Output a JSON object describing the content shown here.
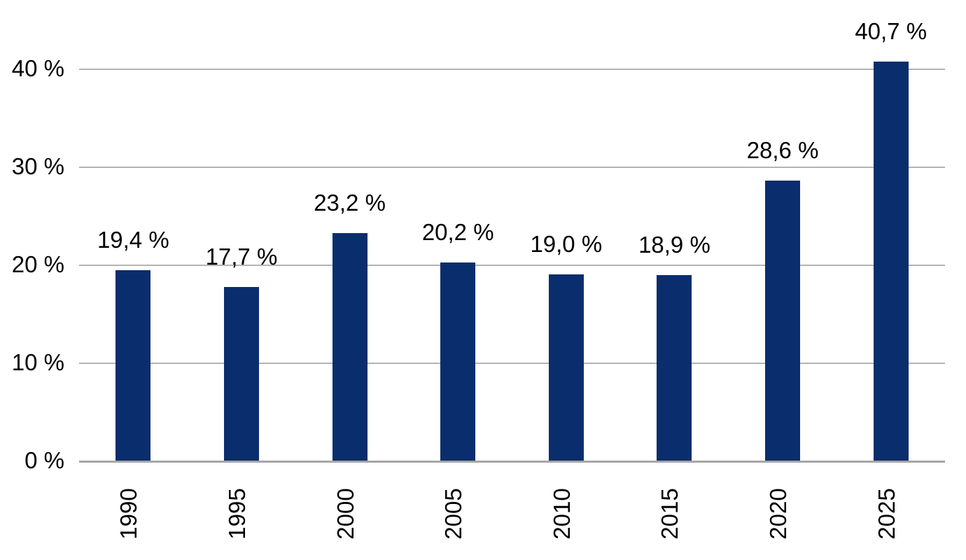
{
  "chart_data": {
    "type": "bar",
    "title": "",
    "xlabel": "",
    "ylabel": "",
    "categories": [
      "1990",
      "1995",
      "2000",
      "2005",
      "2010",
      "2015",
      "2020",
      "2025"
    ],
    "values": [
      19.4,
      17.7,
      23.2,
      20.2,
      19.0,
      18.9,
      28.6,
      40.7
    ],
    "value_labels": [
      "19,4 %",
      "17,7 %",
      "23,2 %",
      "20,2 %",
      "19,0 %",
      "18,9 %",
      "28,6 %",
      "40,7 %"
    ],
    "y_tick_values": [
      0,
      10,
      20,
      30,
      40
    ],
    "y_tick_labels": [
      "0 %",
      "10 %",
      "20 %",
      "30 %",
      "40 %"
    ],
    "ylim": [
      0,
      45
    ],
    "grid": true,
    "legend_position": "none",
    "decimal_separator": ",",
    "bar_color": "#0a2d6d",
    "gridline_color": "#b3b3b3",
    "axisline_color": "#a6a6a6",
    "text_color": "#000000",
    "background_color": "#ffffff"
  }
}
